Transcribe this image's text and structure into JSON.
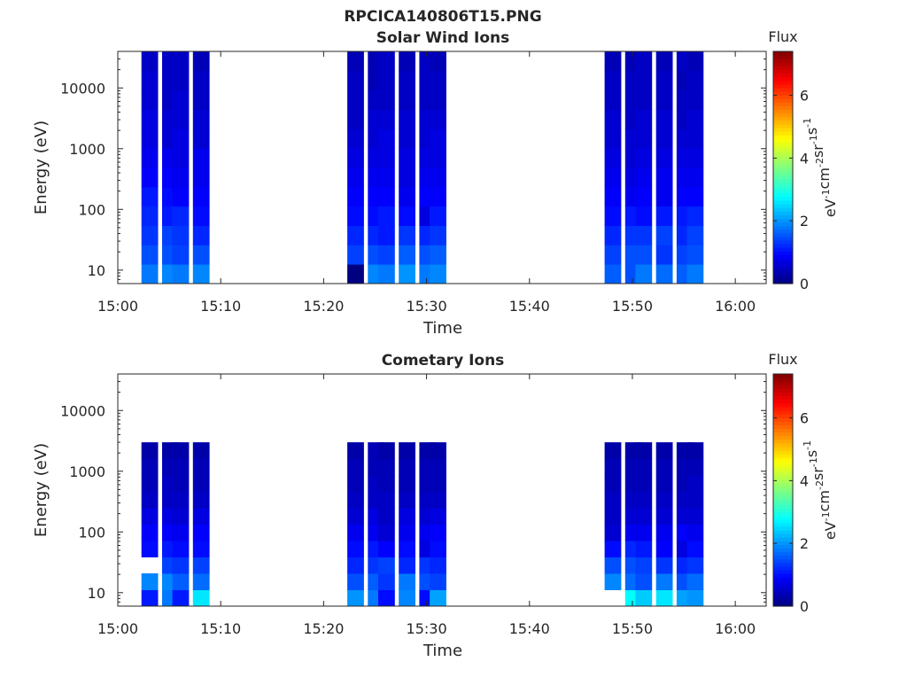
{
  "figure": {
    "title": "RPCICA140806T15.PNG"
  },
  "colorbar": {
    "label": "Flux",
    "axis_label_parts": [
      "eV",
      "-1",
      "cm",
      "-2",
      "sr",
      "-1",
      "s",
      "-1"
    ],
    "ticks": [
      "0",
      "2",
      "4",
      "6"
    ],
    "range": [
      0,
      7.4
    ],
    "colormap": "jet"
  },
  "chart_data": [
    {
      "type": "heatmap",
      "title": "Solar Wind Ions",
      "xlabel": "Time",
      "ylabel": "Energy (eV)",
      "xlim": [
        "15:00",
        "16:03"
      ],
      "ylim": [
        6,
        40000
      ],
      "yscale": "log",
      "x_tick_labels": [
        "15:00",
        "15:10",
        "15:20",
        "15:30",
        "15:40",
        "15:50",
        "16:00"
      ],
      "y_tick_labels": [
        "10",
        "100",
        "1000",
        "10000"
      ],
      "y_tick_values": [
        10,
        100,
        1000,
        10000
      ],
      "columns": [
        {
          "time": "15:02",
          "levels": [
            1.8,
            1.5,
            1.3,
            1.2,
            1.1,
            0.9,
            0.8,
            0.7,
            0.7,
            0.6,
            0.6,
            0.5
          ]
        },
        {
          "time": "15:04",
          "levels": [
            1.9,
            1.5,
            1.4,
            1.1,
            1.0,
            0.9,
            0.8,
            0.6,
            0.6,
            0.5,
            0.5,
            0.5
          ]
        },
        {
          "time": "15:05",
          "levels": [
            1.8,
            1.4,
            1.3,
            1.2,
            0.9,
            0.8,
            0.7,
            0.7,
            0.6,
            0.6,
            0.5,
            0.5
          ]
        },
        {
          "time": "15:07",
          "levels": [
            1.9,
            1.5,
            1.2,
            1.0,
            0.9,
            0.8,
            0.8,
            0.6,
            0.6,
            0.5,
            0.5,
            0.4
          ]
        },
        {
          "time": "15:22",
          "levels": [
            0.0,
            1.4,
            1.2,
            1.0,
            0.9,
            0.8,
            0.7,
            0.6,
            0.5,
            0.5,
            0.5,
            0.4
          ]
        },
        {
          "time": "15:24",
          "levels": [
            1.9,
            1.5,
            1.2,
            1.0,
            0.9,
            0.8,
            0.7,
            0.6,
            0.6,
            0.5,
            0.4,
            0.4
          ]
        },
        {
          "time": "15:25",
          "levels": [
            1.8,
            1.4,
            1.1,
            1.1,
            0.9,
            0.8,
            0.7,
            0.7,
            0.6,
            0.5,
            0.5,
            0.5
          ]
        },
        {
          "time": "15:27",
          "levels": [
            2.0,
            1.6,
            1.3,
            1.0,
            0.8,
            0.7,
            0.7,
            0.6,
            0.6,
            0.5,
            0.5,
            0.4
          ]
        },
        {
          "time": "15:29",
          "levels": [
            1.8,
            1.5,
            1.2,
            0.7,
            0.9,
            0.8,
            0.7,
            0.6,
            0.6,
            0.5,
            0.5,
            0.5
          ]
        },
        {
          "time": "15:30",
          "levels": [
            1.9,
            1.6,
            1.3,
            1.1,
            0.9,
            0.8,
            0.7,
            0.7,
            0.6,
            0.5,
            0.5,
            0.4
          ]
        },
        {
          "time": "15:47",
          "levels": [
            1.6,
            1.4,
            1.2,
            1.0,
            0.9,
            0.8,
            0.7,
            0.6,
            0.6,
            0.5,
            0.5,
            0.4
          ]
        },
        {
          "time": "15:49",
          "levels": [
            1.5,
            1.5,
            1.3,
            1.1,
            0.8,
            0.7,
            0.6,
            0.6,
            0.5,
            0.5,
            0.5,
            0.4
          ]
        },
        {
          "time": "15:50",
          "levels": [
            1.8,
            1.5,
            1.3,
            1.0,
            0.9,
            0.8,
            0.7,
            0.6,
            0.6,
            0.5,
            0.5,
            0.5
          ]
        },
        {
          "time": "15:52",
          "levels": [
            1.7,
            1.3,
            1.4,
            1.1,
            0.8,
            0.8,
            0.7,
            0.6,
            0.6,
            0.5,
            0.5,
            0.4
          ]
        },
        {
          "time": "15:54",
          "levels": [
            1.6,
            1.4,
            1.2,
            1.1,
            0.9,
            0.8,
            0.7,
            0.6,
            0.5,
            0.5,
            0.4,
            0.5
          ]
        },
        {
          "time": "15:55",
          "levels": [
            1.8,
            1.5,
            1.4,
            1.2,
            0.9,
            0.8,
            0.7,
            0.6,
            0.6,
            0.5,
            0.5,
            0.4
          ]
        }
      ]
    },
    {
      "type": "heatmap",
      "title": "Cometary Ions",
      "xlabel": "Time",
      "ylabel": "Energy (eV)",
      "xlim": [
        "15:00",
        "16:03"
      ],
      "ylim": [
        6,
        40000
      ],
      "yscale": "log",
      "x_tick_labels": [
        "15:00",
        "15:10",
        "15:20",
        "15:30",
        "15:40",
        "15:50",
        "16:00"
      ],
      "y_tick_labels": [
        "10",
        "100",
        "1000",
        "10000"
      ],
      "y_tick_values": [
        10,
        100,
        1000,
        10000
      ],
      "columns": [
        {
          "time": "15:02",
          "levels": [
            1.1,
            1.9,
            null,
            1.0,
            0.9,
            0.7,
            0.5,
            0.4,
            0.4,
            0.3
          ]
        },
        {
          "time": "15:04",
          "levels": [
            1.8,
            1.9,
            1.4,
            1.1,
            0.9,
            0.7,
            0.5,
            0.5,
            0.4,
            0.3
          ]
        },
        {
          "time": "15:05",
          "levels": [
            1.1,
            1.6,
            1.3,
            1.0,
            0.8,
            0.6,
            0.5,
            0.4,
            0.4,
            0.3
          ]
        },
        {
          "time": "15:07",
          "levels": [
            2.6,
            1.7,
            1.4,
            1.0,
            0.9,
            0.7,
            0.5,
            0.4,
            0.4,
            0.3
          ]
        },
        {
          "time": "15:22",
          "levels": [
            2.0,
            1.5,
            1.2,
            1.0,
            0.8,
            0.6,
            0.5,
            0.4,
            0.4,
            0.3
          ]
        },
        {
          "time": "15:24",
          "levels": [
            1.8,
            1.6,
            1.3,
            1.1,
            0.8,
            0.7,
            0.5,
            0.5,
            0.4,
            0.4
          ]
        },
        {
          "time": "15:25",
          "levels": [
            1.0,
            1.3,
            1.4,
            0.9,
            0.6,
            0.5,
            0.5,
            0.4,
            0.4,
            0.3
          ]
        },
        {
          "time": "15:27",
          "levels": [
            1.9,
            1.8,
            1.2,
            1.0,
            0.8,
            0.7,
            0.5,
            0.4,
            0.4,
            0.3
          ]
        },
        {
          "time": "15:29",
          "levels": [
            1.0,
            1.5,
            1.3,
            0.7,
            0.8,
            0.6,
            0.5,
            0.4,
            0.4,
            0.3
          ]
        },
        {
          "time": "15:30",
          "levels": [
            2.1,
            1.4,
            1.2,
            1.0,
            0.9,
            0.7,
            0.5,
            0.4,
            0.4,
            0.3
          ]
        },
        {
          "time": "15:47",
          "levels": [
            null,
            1.9,
            1.5,
            1.0,
            0.6,
            0.5,
            0.5,
            0.4,
            0.4,
            0.3
          ]
        },
        {
          "time": "15:49",
          "levels": [
            2.8,
            1.7,
            1.5,
            1.2,
            0.8,
            0.6,
            0.5,
            0.4,
            0.4,
            0.3
          ]
        },
        {
          "time": "15:50",
          "levels": [
            2.4,
            1.5,
            1.4,
            1.1,
            0.8,
            0.6,
            0.5,
            0.4,
            0.4,
            0.3
          ]
        },
        {
          "time": "15:52",
          "levels": [
            2.6,
            1.8,
            1.3,
            0.9,
            0.8,
            0.6,
            0.5,
            0.4,
            0.4,
            0.3
          ]
        },
        {
          "time": "15:54",
          "levels": [
            2.1,
            1.5,
            1.2,
            0.7,
            0.9,
            0.6,
            0.5,
            0.4,
            0.4,
            0.3
          ]
        },
        {
          "time": "15:55",
          "levels": [
            2.0,
            1.7,
            1.3,
            1.0,
            0.8,
            0.6,
            0.5,
            0.5,
            0.4,
            0.3
          ]
        }
      ]
    }
  ]
}
